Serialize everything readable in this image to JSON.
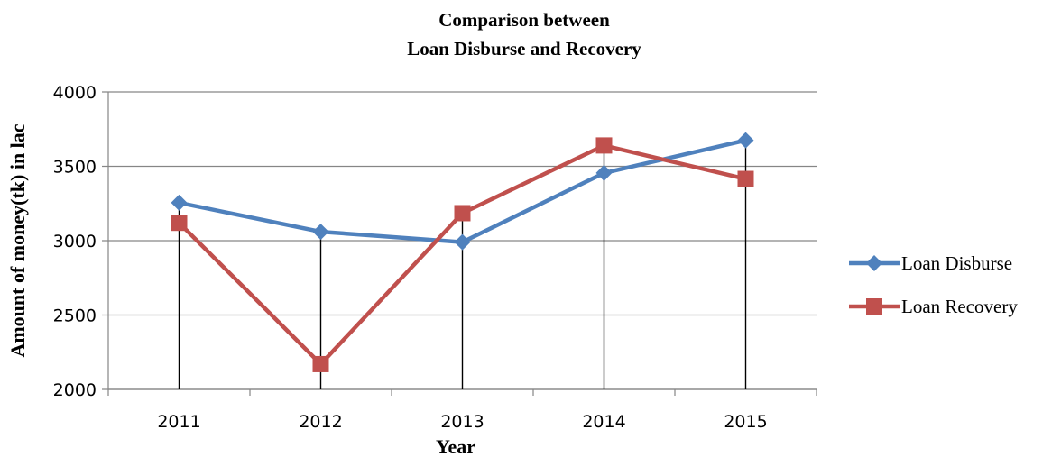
{
  "chart_data": {
    "type": "line",
    "title": [
      "Comparison between",
      "Loan Disburse and Recovery"
    ],
    "xlabel": "Year",
    "ylabel": "Amount of money(tk) in lac",
    "categories": [
      "2011",
      "2012",
      "2013",
      "2014",
      "2015"
    ],
    "ylim": [
      2000,
      4000
    ],
    "yticks": [
      "2000",
      "2500",
      "3000",
      "3500",
      "4000"
    ],
    "grid": "horizontal",
    "drop_lines": true,
    "legend_position": "right",
    "series": [
      {
        "name": "Loan Disburse",
        "values": [
          3255,
          3060,
          2990,
          3455,
          3675
        ],
        "color": "#4F81BD",
        "marker": "diamond"
      },
      {
        "name": "Loan Recovery",
        "values": [
          3120,
          2170,
          3185,
          3640,
          3415
        ],
        "color": "#C0504D",
        "marker": "square"
      }
    ]
  }
}
